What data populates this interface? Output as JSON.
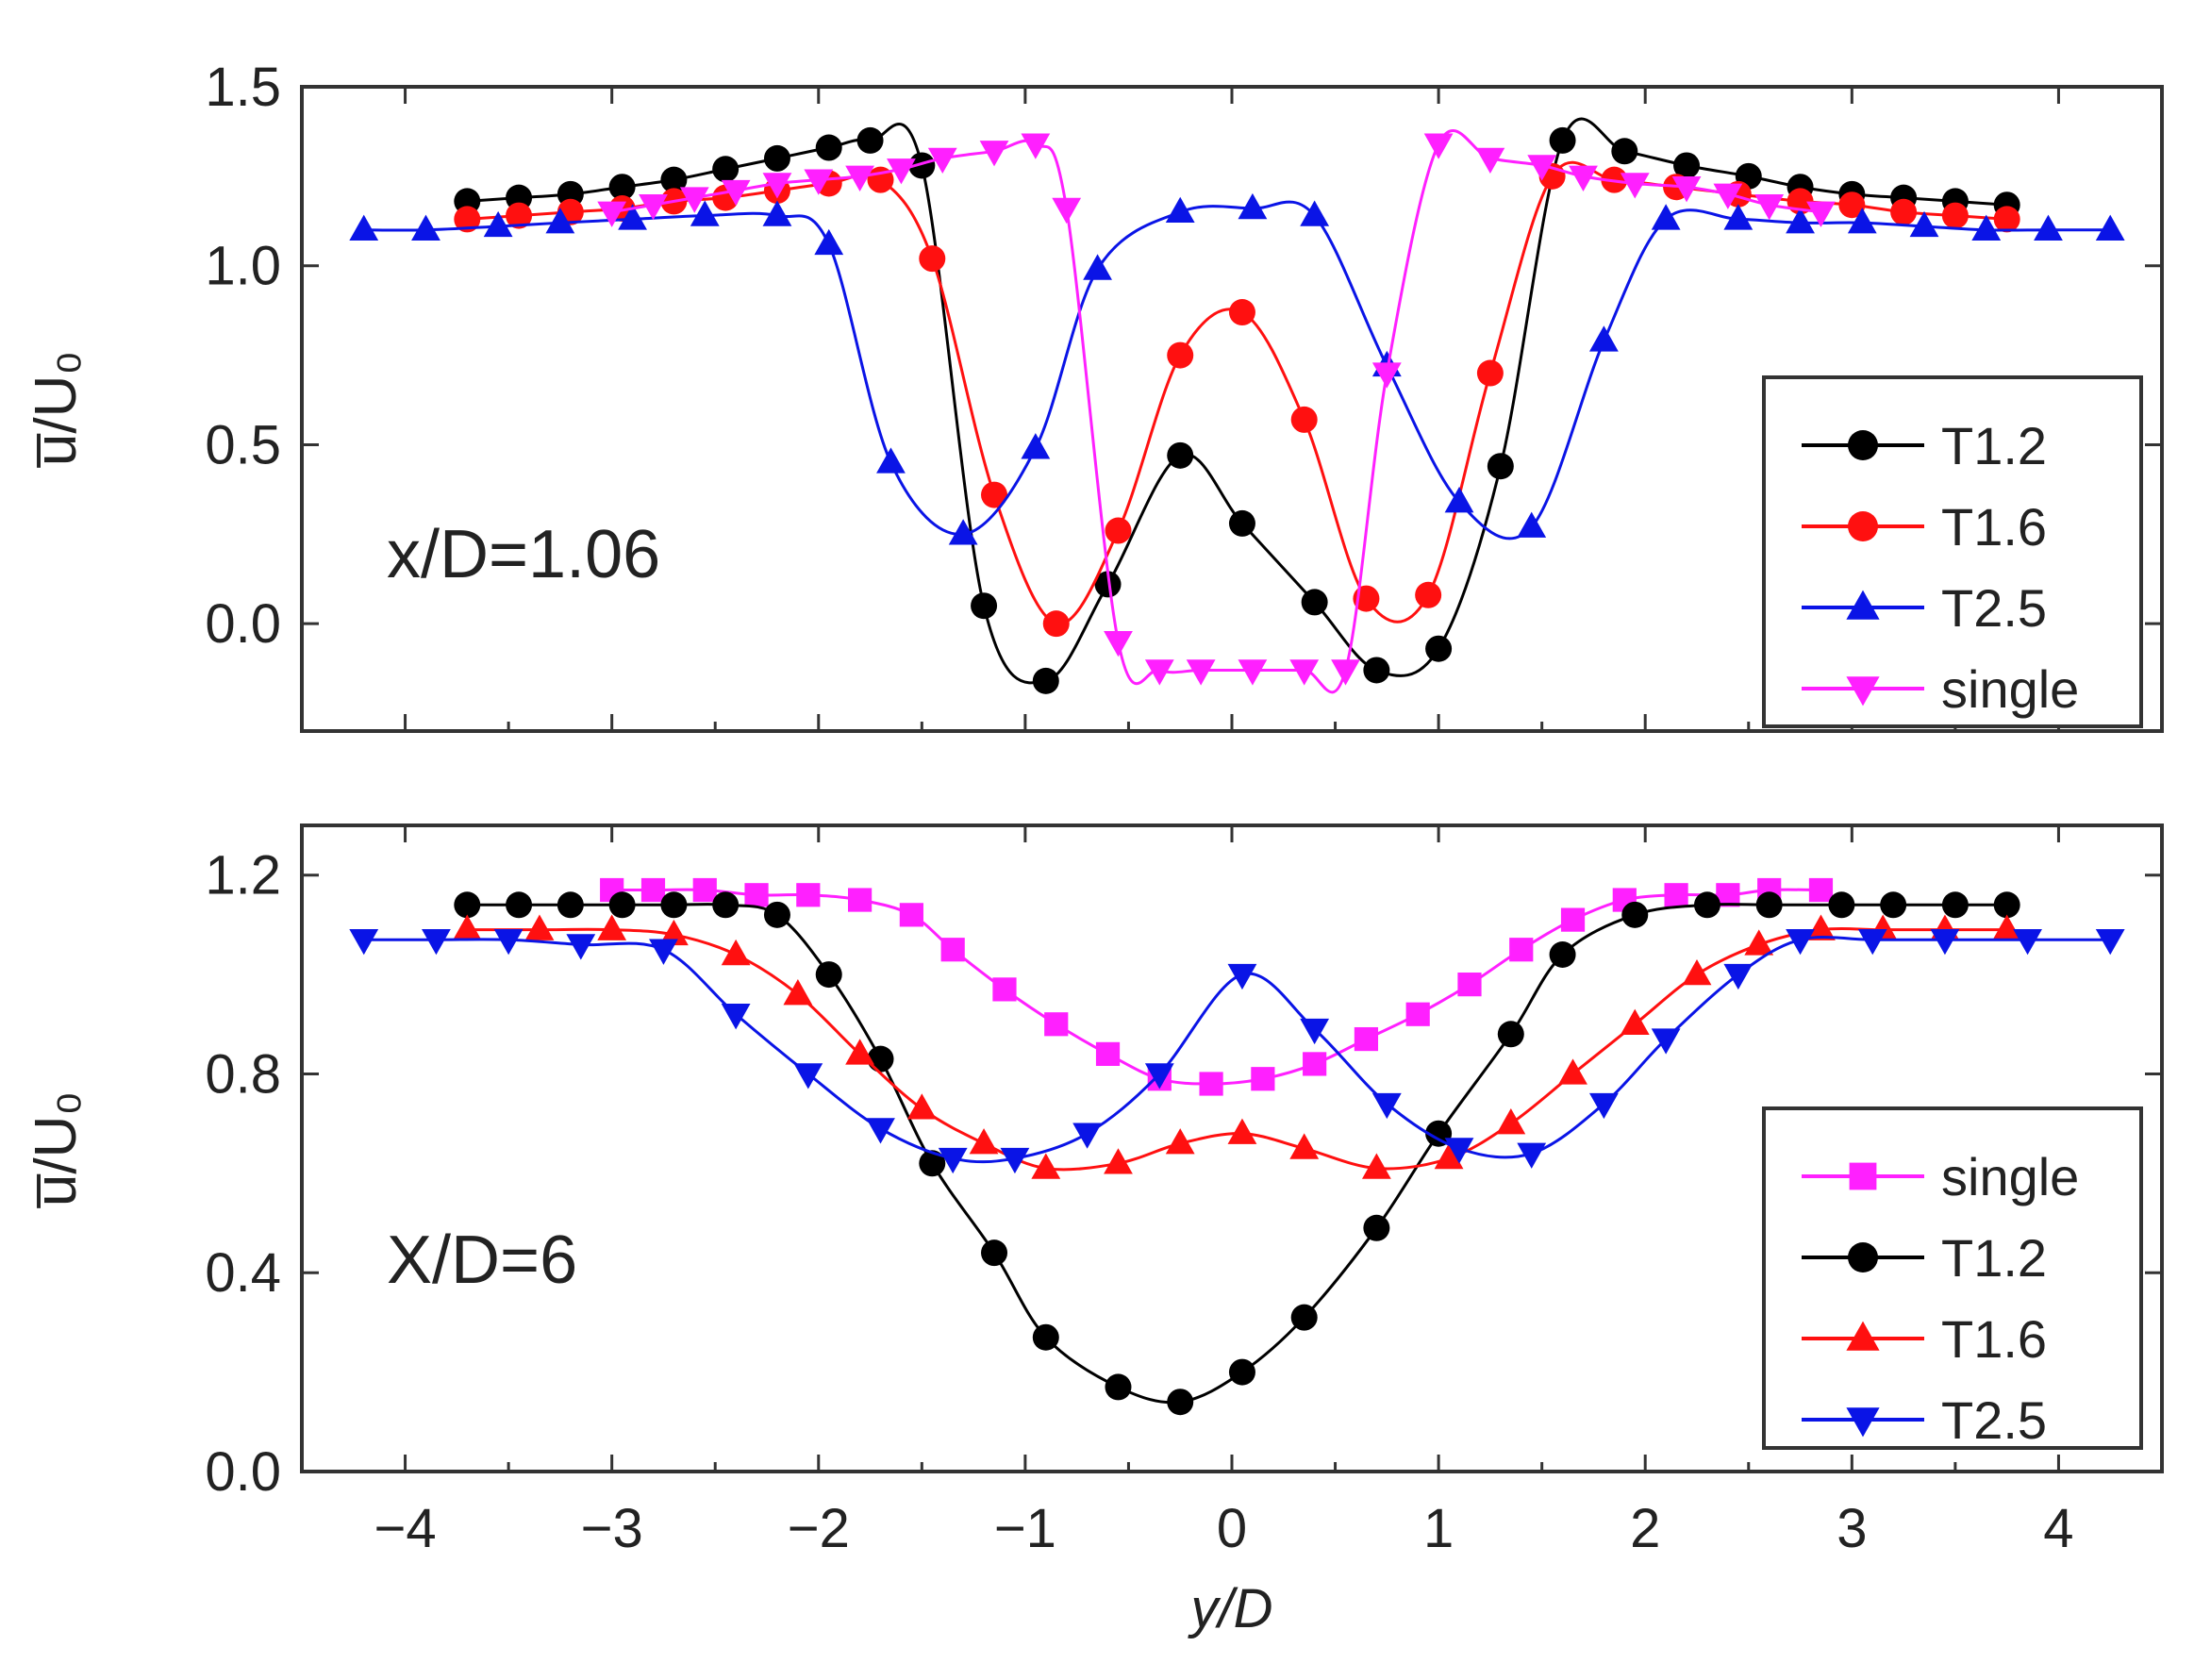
{
  "colors": {
    "T1.2": "#000000",
    "T1.6": "#ff1010",
    "T2.5": "#0a14e6",
    "single": "#ff20ff"
  },
  "chart_data": [
    {
      "type": "line",
      "annotation": "x/D=1.06",
      "ylabel": "u̅/U₀",
      "xlabel": "",
      "xlim": [
        -4.5,
        4.5
      ],
      "ylim": [
        -0.3,
        1.5
      ],
      "xticks": [
        "−4",
        "−3",
        "−2",
        "−1",
        "0",
        "1",
        "2",
        "3",
        "4"
      ],
      "yticks": [
        "0.0",
        "0.5",
        "1.0",
        "1.5"
      ],
      "legend": [
        "T1.2",
        "T1.6",
        "T2.5",
        "single"
      ],
      "legend_position": "bottom-right",
      "series": [
        {
          "name": "T1.2",
          "color": "#000000",
          "marker": "circle",
          "x": [
            -3.7,
            -3.45,
            -3.2,
            -2.95,
            -2.7,
            -2.45,
            -2.2,
            -1.95,
            -1.75,
            -1.5,
            -1.2,
            -0.9,
            -0.6,
            -0.25,
            0.05,
            0.4,
            0.7,
            1.0,
            1.3,
            1.6,
            1.9,
            2.2,
            2.5,
            2.75,
            3.0,
            3.25,
            3.5,
            3.75
          ],
          "y": [
            1.18,
            1.19,
            1.2,
            1.22,
            1.24,
            1.27,
            1.3,
            1.33,
            1.35,
            1.28,
            0.05,
            -0.16,
            0.11,
            0.47,
            0.28,
            0.06,
            -0.13,
            -0.07,
            0.44,
            1.35,
            1.32,
            1.28,
            1.25,
            1.22,
            1.2,
            1.19,
            1.18,
            1.17
          ]
        },
        {
          "name": "T1.6",
          "color": "#ff1010",
          "marker": "circle",
          "x": [
            -3.7,
            -3.45,
            -3.2,
            -2.95,
            -2.7,
            -2.45,
            -2.2,
            -1.95,
            -1.7,
            -1.45,
            -1.15,
            -0.85,
            -0.55,
            -0.25,
            0.05,
            0.35,
            0.65,
            0.95,
            1.25,
            1.55,
            1.85,
            2.15,
            2.45,
            2.75,
            3.0,
            3.25,
            3.5,
            3.75
          ],
          "y": [
            1.13,
            1.14,
            1.15,
            1.16,
            1.18,
            1.19,
            1.21,
            1.23,
            1.24,
            1.02,
            0.36,
            0.0,
            0.26,
            0.75,
            0.87,
            0.57,
            0.07,
            0.08,
            0.7,
            1.25,
            1.24,
            1.22,
            1.2,
            1.18,
            1.17,
            1.15,
            1.14,
            1.13
          ]
        },
        {
          "name": "T2.5",
          "color": "#0a14e6",
          "marker": "triangle-up",
          "x": [
            -4.2,
            -3.9,
            -3.55,
            -3.25,
            -2.9,
            -2.55,
            -2.2,
            -1.95,
            -1.65,
            -1.3,
            -0.95,
            -0.65,
            -0.25,
            0.1,
            0.4,
            0.75,
            1.1,
            1.45,
            1.8,
            2.1,
            2.45,
            2.75,
            3.05,
            3.35,
            3.65,
            3.95,
            4.25
          ],
          "y": [
            1.1,
            1.1,
            1.11,
            1.12,
            1.13,
            1.14,
            1.14,
            1.06,
            0.45,
            0.25,
            0.49,
            0.99,
            1.15,
            1.16,
            1.14,
            0.72,
            0.34,
            0.27,
            0.79,
            1.13,
            1.13,
            1.12,
            1.12,
            1.11,
            1.1,
            1.1,
            1.1
          ]
        },
        {
          "name": "single",
          "color": "#ff20ff",
          "marker": "triangle-down",
          "x": [
            -3.0,
            -2.8,
            -2.6,
            -2.4,
            -2.2,
            -2.0,
            -1.8,
            -1.6,
            -1.4,
            -1.15,
            -0.95,
            -0.8,
            -0.55,
            -0.35,
            -0.15,
            0.1,
            0.35,
            0.55,
            0.75,
            1.0,
            1.25,
            1.5,
            1.7,
            1.95,
            2.2,
            2.4,
            2.6,
            2.85
          ],
          "y": [
            1.15,
            1.17,
            1.19,
            1.21,
            1.23,
            1.24,
            1.25,
            1.27,
            1.3,
            1.32,
            1.34,
            1.16,
            -0.05,
            -0.13,
            -0.13,
            -0.13,
            -0.13,
            -0.13,
            0.7,
            1.34,
            1.3,
            1.28,
            1.25,
            1.23,
            1.22,
            1.2,
            1.17,
            1.15
          ]
        }
      ]
    },
    {
      "type": "line",
      "annotation": "X/D=6",
      "ylabel": "u̅/U₀",
      "xlabel": "y/D",
      "xlim": [
        -4.5,
        4.5
      ],
      "ylim": [
        0.0,
        1.3
      ],
      "xticks": [
        "−4",
        "−3",
        "−2",
        "−1",
        "0",
        "1",
        "2",
        "3",
        "4"
      ],
      "yticks": [
        "0.0",
        "0.4",
        "0.8",
        "1.2"
      ],
      "legend": [
        "single",
        "T1.2",
        "T1.6",
        "T2.5"
      ],
      "legend_position": "bottom-right",
      "series": [
        {
          "name": "single",
          "color": "#ff20ff",
          "marker": "square",
          "x": [
            -3.0,
            -2.8,
            -2.55,
            -2.3,
            -2.05,
            -1.8,
            -1.55,
            -1.35,
            -1.1,
            -0.85,
            -0.6,
            -0.35,
            -0.1,
            0.15,
            0.4,
            0.65,
            0.9,
            1.15,
            1.4,
            1.65,
            1.9,
            2.15,
            2.4,
            2.6,
            2.85
          ],
          "y": [
            1.17,
            1.17,
            1.17,
            1.16,
            1.16,
            1.15,
            1.12,
            1.05,
            0.97,
            0.9,
            0.84,
            0.79,
            0.78,
            0.79,
            0.82,
            0.87,
            0.92,
            0.98,
            1.05,
            1.11,
            1.15,
            1.16,
            1.16,
            1.17,
            1.17
          ]
        },
        {
          "name": "T1.2",
          "color": "#000000",
          "marker": "circle",
          "x": [
            -3.7,
            -3.45,
            -3.2,
            -2.95,
            -2.7,
            -2.45,
            -2.2,
            -1.95,
            -1.7,
            -1.45,
            -1.15,
            -0.9,
            -0.55,
            -0.25,
            0.05,
            0.35,
            0.7,
            1.0,
            1.35,
            1.6,
            1.95,
            2.3,
            2.6,
            2.95,
            3.2,
            3.5,
            3.75
          ],
          "y": [
            1.14,
            1.14,
            1.14,
            1.14,
            1.14,
            1.14,
            1.12,
            1.0,
            0.83,
            0.62,
            0.44,
            0.27,
            0.17,
            0.14,
            0.2,
            0.31,
            0.49,
            0.68,
            0.88,
            1.04,
            1.12,
            1.14,
            1.14,
            1.14,
            1.14,
            1.14,
            1.14
          ]
        },
        {
          "name": "T1.6",
          "color": "#ff1010",
          "marker": "triangle-up",
          "x": [
            -3.7,
            -3.35,
            -3.0,
            -2.7,
            -2.4,
            -2.1,
            -1.8,
            -1.5,
            -1.2,
            -0.9,
            -0.55,
            -0.25,
            0.05,
            0.35,
            0.7,
            1.05,
            1.35,
            1.65,
            1.95,
            2.25,
            2.55,
            2.85,
            3.15,
            3.45,
            3.75
          ],
          "y": [
            1.09,
            1.09,
            1.09,
            1.08,
            1.04,
            0.96,
            0.84,
            0.73,
            0.66,
            0.61,
            0.62,
            0.66,
            0.68,
            0.65,
            0.61,
            0.63,
            0.7,
            0.8,
            0.9,
            1.0,
            1.06,
            1.09,
            1.09,
            1.09,
            1.09
          ]
        },
        {
          "name": "T2.5",
          "color": "#0a14e6",
          "marker": "triangle-down",
          "x": [
            -4.2,
            -3.85,
            -3.5,
            -3.15,
            -2.75,
            -2.4,
            -2.05,
            -1.7,
            -1.35,
            -1.05,
            -0.7,
            -0.35,
            0.05,
            0.4,
            0.75,
            1.1,
            1.45,
            1.8,
            2.1,
            2.45,
            2.75,
            3.1,
            3.45,
            3.85,
            4.25
          ],
          "y": [
            1.07,
            1.07,
            1.07,
            1.06,
            1.05,
            0.92,
            0.8,
            0.69,
            0.63,
            0.63,
            0.68,
            0.8,
            1.0,
            0.89,
            0.74,
            0.65,
            0.64,
            0.74,
            0.87,
            1.0,
            1.07,
            1.07,
            1.07,
            1.07,
            1.07
          ]
        }
      ]
    }
  ]
}
